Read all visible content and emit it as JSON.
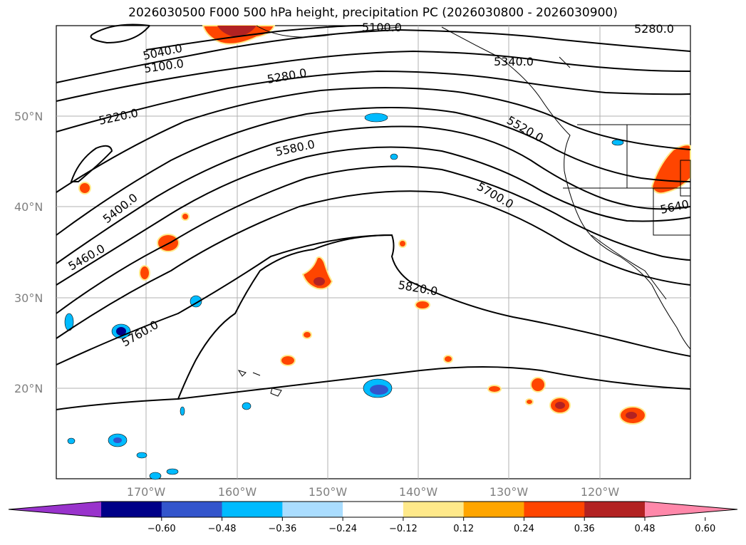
{
  "title": "2026030500 F000 500 hPa height, precipitation PC (2026030800 - 2026030900)",
  "lat_ticks": [
    "50°N",
    "40°N",
    "30°N",
    "20°N"
  ],
  "lon_ticks": [
    "170°W",
    "160°W",
    "150°W",
    "140°W",
    "130°W",
    "120°W"
  ],
  "contour_labels": [
    "5040.0",
    "5100.0",
    "5100.0",
    "5280.0",
    "5280.0",
    "5340.0",
    "5220.0",
    "5520.0",
    "5580.0",
    "5400.0",
    "5700.0",
    "5460.0",
    "5640",
    "5820.0",
    "5760.0"
  ],
  "colorbar": {
    "ticks": [
      "−0.60",
      "−0.48",
      "−0.36",
      "−0.24",
      "−0.12",
      "0.12",
      "0.24",
      "0.36",
      "0.48",
      "0.60"
    ],
    "colors": [
      "#9933cc",
      "#000088",
      "#3355cc",
      "#00bbff",
      "#aaddff",
      "#ffffff",
      "#ffe98a",
      "#ffa500",
      "#ff4500",
      "#b22222",
      "#ff88aa"
    ]
  }
}
